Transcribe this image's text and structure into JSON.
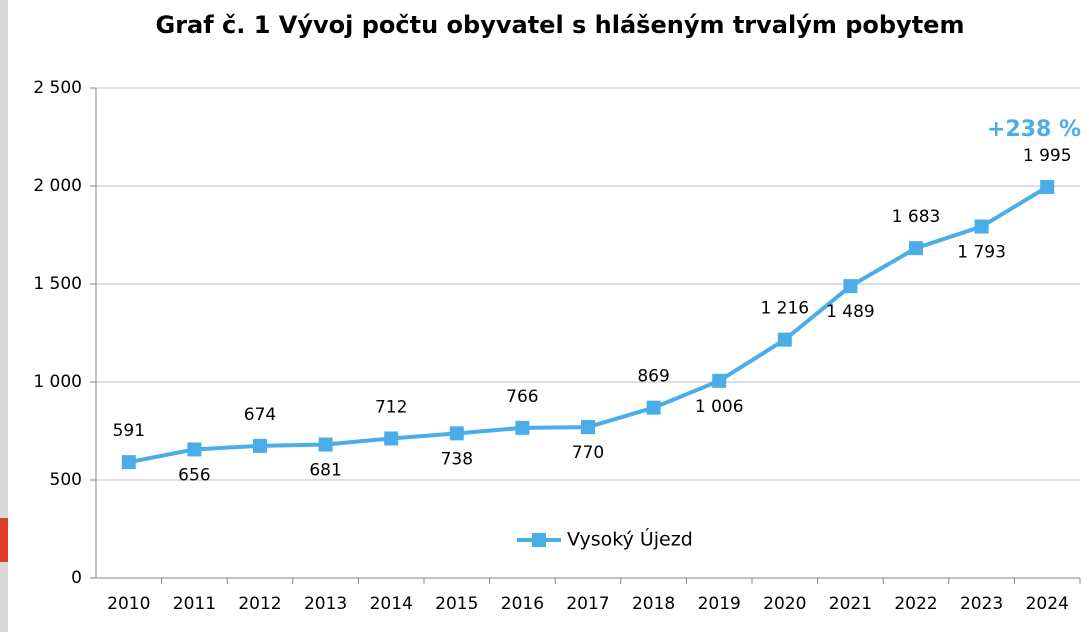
{
  "chart_data": {
    "type": "line",
    "title": "Graf č. 1 Vývoj počtu obyvatel s hlášeným trvalým pobytem",
    "categories": [
      "2010",
      "2011",
      "2012",
      "2013",
      "2014",
      "2015",
      "2016",
      "2017",
      "2018",
      "2019",
      "2020",
      "2021",
      "2022",
      "2023",
      "2024"
    ],
    "series": [
      {
        "name": "Vysoký Újezd",
        "color": "#4bade8",
        "values": [
          591,
          656,
          674,
          681,
          712,
          738,
          766,
          770,
          869,
          1006,
          1216,
          1489,
          1683,
          1793,
          1995
        ],
        "value_labels": [
          "591",
          "656",
          "674",
          "681",
          "712",
          "738",
          "766",
          "770",
          "869",
          "1 006",
          "1 216",
          "1 489",
          "1 683",
          "1 793",
          "1 995"
        ]
      }
    ],
    "ylim": [
      0,
      2500
    ],
    "yticks": [
      0,
      500,
      {
        "value": 1000,
        "label": "1 000"
      },
      {
        "value": 1500,
        "label": "1 500"
      },
      {
        "value": 2000,
        "label": "2 000"
      },
      {
        "value": 2500,
        "label": "2 500"
      }
    ],
    "grid": true,
    "legend": "bottom",
    "annotations": [
      {
        "text": "+238 %",
        "color": "#4bade8"
      }
    ]
  }
}
